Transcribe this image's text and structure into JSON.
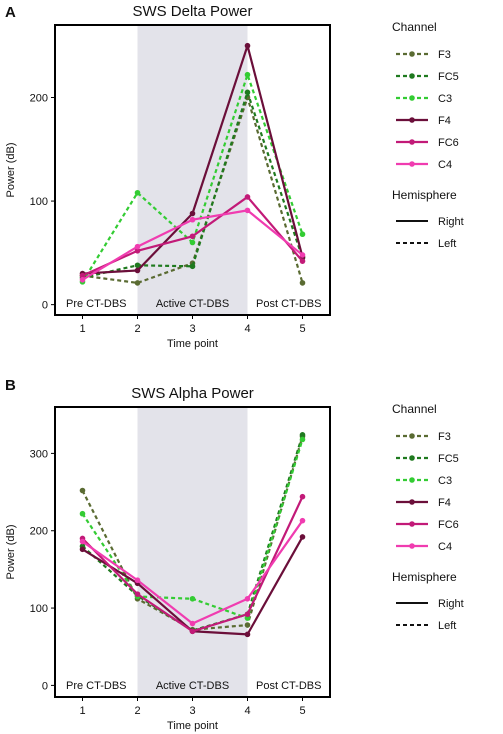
{
  "panels": [
    {
      "letter": "A",
      "chart_data": {
        "type": "line",
        "title": "SWS Delta Power",
        "xlabel": "Time point",
        "ylabel": "Power (dB)",
        "x": [
          1,
          2,
          3,
          4,
          5
        ],
        "xlim": [
          0.5,
          5.5
        ],
        "ylim": [
          -10,
          270
        ],
        "yticks": [
          0,
          100,
          200
        ],
        "shaded_region": [
          2,
          4
        ],
        "phase_labels": [
          "Pre CT-DBS",
          "Active CT-DBS",
          "Post CT-DBS"
        ],
        "series": [
          {
            "name": "F3",
            "hemisphere": "Left",
            "color": "#5a6b32",
            "values": [
              28,
              21,
              40,
              200,
              21
            ]
          },
          {
            "name": "FC5",
            "hemisphere": "Left",
            "color": "#1f7a1f",
            "values": [
              26,
              38,
              37,
              205,
              45
            ]
          },
          {
            "name": "C3",
            "hemisphere": "Left",
            "color": "#33cc33",
            "values": [
              22,
              108,
              60,
              222,
              68
            ]
          },
          {
            "name": "F4",
            "hemisphere": "Right",
            "color": "#6b0f3a",
            "values": [
              30,
              33,
              88,
              250,
              46
            ]
          },
          {
            "name": "FC6",
            "hemisphere": "Right",
            "color": "#c21a78",
            "values": [
              28,
              52,
              66,
              104,
              42
            ]
          },
          {
            "name": "C4",
            "hemisphere": "Right",
            "color": "#f03cb0",
            "values": [
              24,
              56,
              82,
              91,
              48
            ]
          }
        ]
      }
    },
    {
      "letter": "B",
      "chart_data": {
        "type": "line",
        "title": "SWS Alpha Power",
        "xlabel": "Time point",
        "ylabel": "Power (dB)",
        "x": [
          1,
          2,
          3,
          4,
          5
        ],
        "xlim": [
          0.5,
          5.5
        ],
        "ylim": [
          -15,
          360
        ],
        "yticks": [
          0,
          100,
          200,
          300
        ],
        "shaded_region": [
          2,
          4
        ],
        "phase_labels": [
          "Pre CT-DBS",
          "Active CT-DBS",
          "Post CT-DBS"
        ],
        "series": [
          {
            "name": "F3",
            "hemisphere": "Left",
            "color": "#5a6b32",
            "values": [
              252,
              112,
              72,
              78,
              322
            ]
          },
          {
            "name": "FC5",
            "hemisphere": "Left",
            "color": "#1f7a1f",
            "values": [
              180,
              116,
              71,
              92,
              324
            ]
          },
          {
            "name": "C3",
            "hemisphere": "Left",
            "color": "#33cc33",
            "values": [
              222,
              115,
              112,
              87,
              318
            ]
          },
          {
            "name": "F4",
            "hemisphere": "Right",
            "color": "#6b0f3a",
            "values": [
              176,
              132,
              70,
              66,
              192
            ]
          },
          {
            "name": "FC6",
            "hemisphere": "Right",
            "color": "#c21a78",
            "values": [
              190,
              118,
              70,
              92,
              244
            ]
          },
          {
            "name": "C4",
            "hemisphere": "Right",
            "color": "#f03cb0",
            "values": [
              186,
              136,
              80,
              112,
              213
            ]
          }
        ]
      }
    }
  ],
  "legend": {
    "channel_title": "Channel",
    "hemisphere_title": "Hemisphere",
    "hemisphere_items": [
      {
        "label": "Right",
        "style": "solid"
      },
      {
        "label": "Left",
        "style": "dashed"
      }
    ]
  }
}
